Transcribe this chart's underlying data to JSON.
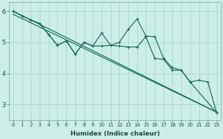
{
  "xlabel": "Humidex (Indice chaleur)",
  "background_color": "#cceee8",
  "grid_color": "#aad4cc",
  "line_color": "#1a6b5a",
  "xlim": [
    -0.5,
    23.5
  ],
  "ylim": [
    2.5,
    6.3
  ],
  "series": [
    {
      "x": [
        0,
        23
      ],
      "y": [
        6.0,
        2.75
      ],
      "has_markers": false
    },
    {
      "x": [
        0,
        23
      ],
      "y": [
        5.9,
        2.75
      ],
      "has_markers": false
    },
    {
      "x": [
        0,
        1,
        2,
        3,
        4,
        5,
        6,
        7,
        8,
        9,
        10,
        11,
        12,
        13,
        14,
        15,
        16,
        17,
        18,
        19,
        20,
        23
      ],
      "y": [
        6.0,
        5.85,
        5.72,
        5.6,
        5.25,
        4.9,
        5.05,
        4.62,
        5.0,
        4.88,
        5.3,
        4.9,
        5.0,
        5.42,
        5.75,
        5.2,
        5.18,
        4.48,
        4.18,
        4.1,
        3.72,
        2.73
      ],
      "has_markers": true
    },
    {
      "x": [
        0,
        1,
        2,
        3,
        4,
        5,
        6,
        7,
        8,
        9,
        10,
        11,
        12,
        13,
        14,
        15,
        16,
        17,
        18,
        19,
        20,
        21,
        22,
        23
      ],
      "y": [
        6.0,
        5.85,
        5.72,
        5.6,
        5.25,
        4.9,
        5.05,
        4.62,
        5.0,
        4.88,
        4.88,
        4.9,
        4.88,
        4.85,
        4.85,
        5.18,
        4.48,
        4.45,
        4.1,
        4.1,
        3.72,
        3.78,
        3.72,
        2.73
      ],
      "has_markers": true
    }
  ],
  "yticks": [
    3,
    4,
    5,
    6
  ],
  "xticks": [
    0,
    1,
    2,
    3,
    4,
    5,
    6,
    7,
    8,
    9,
    10,
    11,
    12,
    13,
    14,
    15,
    16,
    17,
    18,
    19,
    20,
    21,
    22,
    23
  ],
  "marker": "+",
  "linewidth": 0.9,
  "markersize": 3.5
}
